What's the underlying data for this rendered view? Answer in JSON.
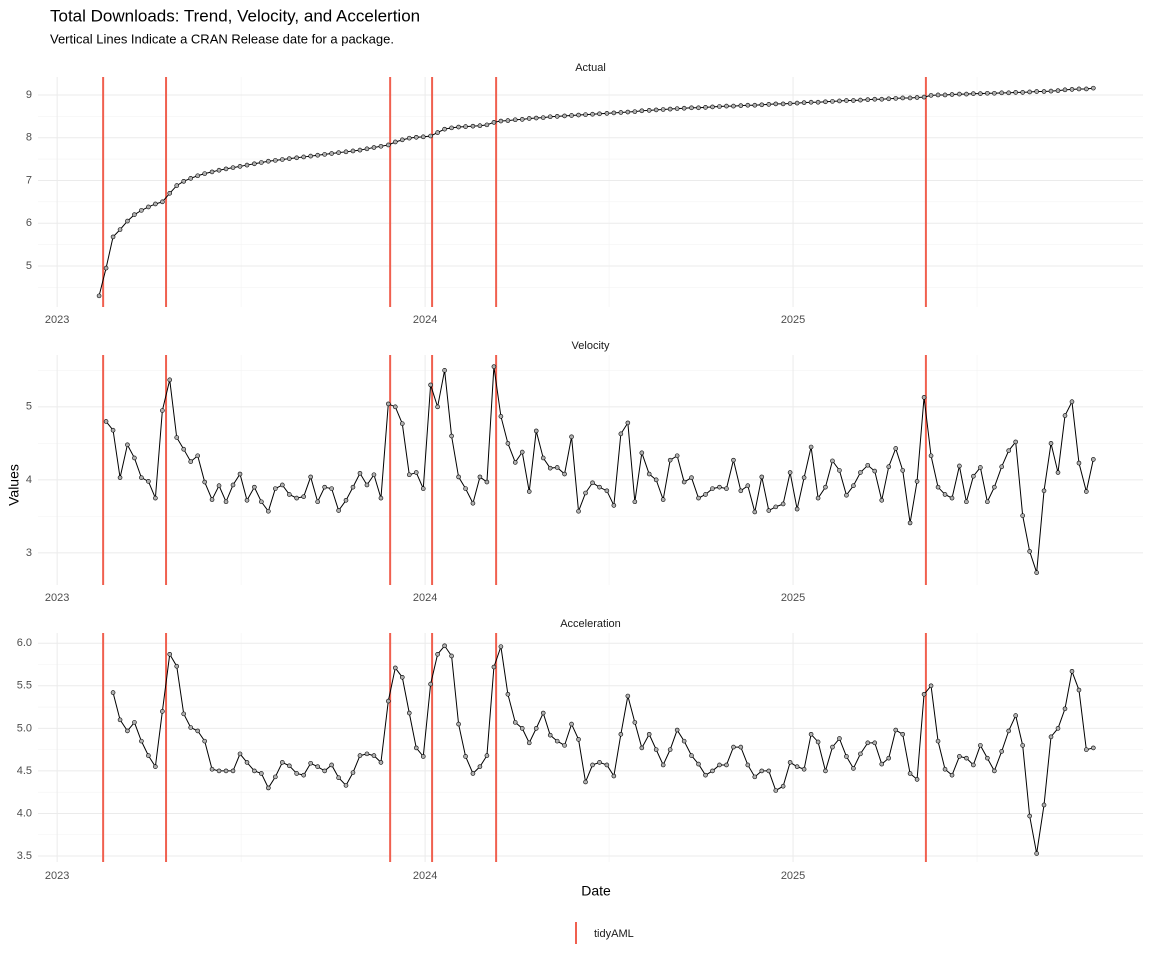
{
  "chart_data": {
    "type": "line",
    "title": "Total Downloads: Trend, Velocity, and Accelertion",
    "subtitle": "Vertical Lines Indicate a CRAN Release date for a package.",
    "x_label": "Date",
    "y_label": "Values",
    "x": [
      2023.114,
      2023.133,
      2023.152,
      2023.171,
      2023.191,
      2023.21,
      2023.229,
      2023.248,
      2023.267,
      2023.286,
      2023.306,
      2023.325,
      2023.344,
      2023.363,
      2023.382,
      2023.401,
      2023.421,
      2023.44,
      2023.459,
      2023.478,
      2023.497,
      2023.516,
      2023.536,
      2023.555,
      2023.574,
      2023.593,
      2023.612,
      2023.631,
      2023.651,
      2023.67,
      2023.689,
      2023.708,
      2023.727,
      2023.746,
      2023.765,
      2023.785,
      2023.804,
      2023.823,
      2023.842,
      2023.861,
      2023.88,
      2023.9,
      2023.919,
      2023.938,
      2023.957,
      2023.976,
      2023.995,
      2024.015,
      2024.034,
      2024.053,
      2024.072,
      2024.091,
      2024.11,
      2024.13,
      2024.149,
      2024.168,
      2024.187,
      2024.206,
      2024.225,
      2024.245,
      2024.264,
      2024.283,
      2024.302,
      2024.321,
      2024.34,
      2024.359,
      2024.379,
      2024.398,
      2024.417,
      2024.436,
      2024.455,
      2024.474,
      2024.494,
      2024.513,
      2024.532,
      2024.551,
      2024.57,
      2024.589,
      2024.609,
      2024.628,
      2024.647,
      2024.666,
      2024.685,
      2024.704,
      2024.724,
      2024.743,
      2024.762,
      2024.781,
      2024.8,
      2024.819,
      2024.838,
      2024.858,
      2024.877,
      2024.896,
      2024.915,
      2024.934,
      2024.953,
      2024.973,
      2024.992,
      2025.011,
      2025.03,
      2025.049,
      2025.068,
      2025.088,
      2025.107,
      2025.126,
      2025.145,
      2025.164,
      2025.183,
      2025.203,
      2025.222,
      2025.241,
      2025.26,
      2025.279,
      2025.298,
      2025.318,
      2025.337,
      2025.356,
      2025.375,
      2025.394,
      2025.413,
      2025.432,
      2025.452,
      2025.471,
      2025.49,
      2025.509,
      2025.528,
      2025.547,
      2025.567,
      2025.586,
      2025.605,
      2025.624,
      2025.643,
      2025.662,
      2025.682,
      2025.701,
      2025.72,
      2025.739,
      2025.758,
      2025.777,
      2025.797,
      2025.816
    ],
    "xlim": [
      2022.948,
      2025.951
    ],
    "xticks": [
      2023,
      2024,
      2025
    ],
    "x_minor_ticks": [
      2023.5,
      2024.5,
      2025.5
    ],
    "grid": true,
    "line_color": "#000000",
    "point_fill": "#b0b0b0",
    "facets": [
      {
        "title": "Actual",
        "ylim": [
          4.04,
          9.42
        ],
        "yticks": [
          5,
          6,
          7,
          8,
          9
        ],
        "y_minor_ticks": [
          4.5,
          5.5,
          6.5,
          7.5,
          8.5
        ],
        "values": [
          4.3,
          4.95,
          5.68,
          5.85,
          6.05,
          6.2,
          6.3,
          6.38,
          6.45,
          6.5,
          6.7,
          6.88,
          6.98,
          7.05,
          7.11,
          7.16,
          7.2,
          7.24,
          7.27,
          7.3,
          7.33,
          7.36,
          7.39,
          7.42,
          7.45,
          7.47,
          7.49,
          7.51,
          7.53,
          7.55,
          7.57,
          7.59,
          7.61,
          7.63,
          7.65,
          7.67,
          7.69,
          7.71,
          7.74,
          7.77,
          7.8,
          7.83,
          7.9,
          7.95,
          7.99,
          8.01,
          8.02,
          8.04,
          8.12,
          8.2,
          8.23,
          8.25,
          8.26,
          8.27,
          8.28,
          8.3,
          8.36,
          8.39,
          8.4,
          8.42,
          8.43,
          8.45,
          8.46,
          8.47,
          8.49,
          8.5,
          8.51,
          8.52,
          8.53,
          8.54,
          8.55,
          8.56,
          8.57,
          8.58,
          8.59,
          8.6,
          8.61,
          8.63,
          8.64,
          8.65,
          8.66,
          8.67,
          8.68,
          8.69,
          8.7,
          8.7,
          8.71,
          8.72,
          8.73,
          8.74,
          8.74,
          8.75,
          8.76,
          8.76,
          8.77,
          8.78,
          8.79,
          8.79,
          8.8,
          8.81,
          8.82,
          8.83,
          8.83,
          8.84,
          8.85,
          8.86,
          8.87,
          8.87,
          8.88,
          8.89,
          8.9,
          8.9,
          8.91,
          8.92,
          8.93,
          8.93,
          8.94,
          8.95,
          8.99,
          9.0,
          9.0,
          9.01,
          9.02,
          9.02,
          9.03,
          9.03,
          9.04,
          9.04,
          9.05,
          9.05,
          9.06,
          9.06,
          9.07,
          9.08,
          9.08,
          9.09,
          9.1,
          9.12,
          9.13,
          9.14,
          9.14,
          9.16
        ]
      },
      {
        "title": "Velocity",
        "ylim": [
          2.56,
          5.71
        ],
        "yticks": [
          3,
          4,
          5
        ],
        "y_minor_ticks": [
          3.5,
          4.5,
          5.5
        ],
        "values": [
          null,
          4.8,
          4.68,
          4.03,
          4.48,
          4.3,
          4.03,
          3.98,
          3.75,
          4.95,
          5.37,
          4.58,
          4.42,
          4.25,
          4.33,
          3.97,
          3.73,
          3.92,
          3.7,
          3.93,
          4.08,
          3.72,
          3.9,
          3.7,
          3.57,
          3.88,
          3.93,
          3.8,
          3.75,
          3.77,
          4.04,
          3.7,
          3.9,
          3.88,
          3.58,
          3.72,
          3.9,
          4.09,
          3.93,
          4.07,
          3.75,
          5.04,
          5.0,
          4.77,
          4.07,
          4.1,
          3.88,
          5.3,
          5.0,
          5.5,
          4.6,
          4.04,
          3.88,
          3.68,
          4.04,
          3.97,
          5.55,
          4.87,
          4.5,
          4.24,
          4.38,
          3.84,
          4.67,
          4.3,
          4.16,
          4.17,
          4.08,
          4.59,
          3.57,
          3.82,
          3.96,
          3.9,
          3.85,
          3.65,
          4.63,
          4.78,
          3.7,
          4.37,
          4.08,
          4.0,
          3.73,
          4.27,
          4.33,
          3.97,
          4.03,
          3.75,
          3.8,
          3.88,
          3.9,
          3.88,
          4.27,
          3.85,
          3.92,
          3.56,
          4.04,
          3.58,
          3.63,
          3.67,
          4.1,
          3.6,
          4.03,
          4.45,
          3.75,
          3.9,
          4.26,
          4.13,
          3.79,
          3.92,
          4.1,
          4.2,
          4.12,
          3.72,
          4.18,
          4.43,
          4.13,
          3.41,
          3.98,
          5.13,
          4.33,
          3.9,
          3.8,
          3.75,
          4.19,
          3.7,
          4.05,
          4.17,
          3.7,
          3.9,
          4.18,
          4.4,
          4.52,
          3.51,
          3.02,
          2.73,
          3.85,
          4.5,
          4.1,
          4.88,
          5.07,
          4.23,
          3.84,
          4.28
        ]
      },
      {
        "title": "Acceleration",
        "ylim": [
          3.43,
          6.12
        ],
        "yticks": [
          3.5,
          {
            "value": 4,
            "label": "4.0"
          },
          4.5,
          {
            "value": 5,
            "label": "5.0"
          },
          5.5,
          {
            "value": 6,
            "label": "6.0"
          }
        ],
        "y_minor_ticks": [
          3.75,
          4.25,
          4.75,
          5.25,
          5.75
        ],
        "values": [
          null,
          null,
          5.42,
          5.1,
          4.97,
          5.07,
          4.85,
          4.68,
          4.55,
          5.2,
          5.87,
          5.73,
          5.17,
          5.01,
          4.97,
          4.85,
          4.52,
          4.5,
          4.5,
          4.5,
          4.7,
          4.6,
          4.5,
          4.47,
          4.3,
          4.43,
          4.6,
          4.56,
          4.47,
          4.45,
          4.59,
          4.55,
          4.5,
          4.57,
          4.42,
          4.33,
          4.48,
          4.68,
          4.7,
          4.68,
          4.6,
          5.32,
          5.71,
          5.6,
          5.18,
          4.77,
          4.67,
          5.52,
          5.87,
          5.97,
          5.85,
          5.05,
          4.67,
          4.47,
          4.55,
          4.68,
          5.72,
          5.96,
          5.4,
          5.07,
          5.0,
          4.83,
          5.0,
          5.18,
          4.92,
          4.85,
          4.8,
          5.05,
          4.87,
          4.37,
          4.57,
          4.6,
          4.57,
          4.44,
          4.93,
          5.38,
          5.07,
          4.77,
          4.93,
          4.75,
          4.57,
          4.75,
          4.98,
          4.85,
          4.68,
          4.58,
          4.45,
          4.5,
          4.57,
          4.57,
          4.78,
          4.78,
          4.57,
          4.43,
          4.5,
          4.5,
          4.27,
          4.32,
          4.6,
          4.55,
          4.52,
          4.93,
          4.84,
          4.5,
          4.78,
          4.88,
          4.67,
          4.53,
          4.7,
          4.83,
          4.83,
          4.58,
          4.65,
          4.98,
          4.93,
          4.47,
          4.4,
          5.4,
          5.5,
          4.85,
          4.52,
          4.45,
          4.67,
          4.65,
          4.57,
          4.8,
          4.65,
          4.5,
          4.73,
          4.97,
          5.15,
          4.8,
          3.97,
          3.53,
          4.1,
          4.9,
          5.0,
          5.23,
          5.67,
          5.45,
          4.75,
          4.77
        ]
      }
    ],
    "vlines": {
      "name": "tidyAML",
      "color": "#f0604f",
      "x": [
        2023.125,
        2023.296,
        2023.905,
        2024.019,
        2024.193,
        2025.361
      ]
    },
    "legend_position": "bottom"
  }
}
